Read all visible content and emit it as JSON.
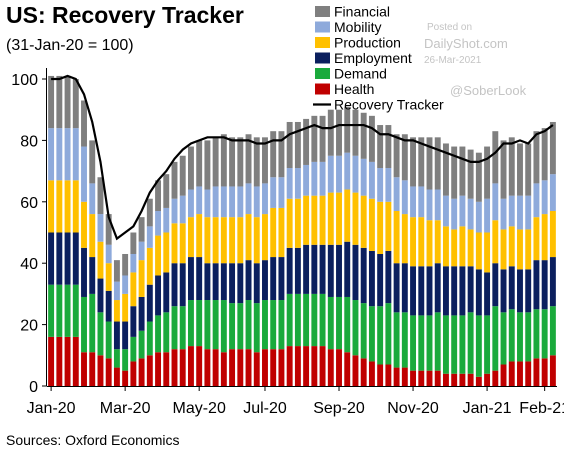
{
  "chart_data": {
    "type": "bar",
    "stacked": true,
    "title": "US: Recovery Tracker",
    "subtitle": "(31-Jan-20 = 100)",
    "source": "Sources: Oxford Economics",
    "ylim": [
      0,
      110
    ],
    "yticks": [
      0,
      20,
      40,
      60,
      80,
      100
    ],
    "xticks": [
      "Jan-20",
      "Mar-20",
      "May-20",
      "Jul-20",
      "Sep-20",
      "Nov-20",
      "Jan-21",
      "Feb-21"
    ],
    "xtick_positions": [
      0,
      9,
      18,
      26,
      35,
      44,
      53,
      60
    ],
    "legend_position": "top-right",
    "grid": false,
    "series": [
      {
        "name": "Health",
        "color": "#c00000",
        "values": [
          16,
          16,
          16,
          16,
          11,
          11,
          10,
          9,
          6,
          5,
          8,
          9,
          10,
          11,
          11,
          12,
          12,
          13,
          13,
          12,
          12,
          11,
          12,
          12,
          12,
          11,
          12,
          12,
          12,
          13,
          13,
          13,
          13,
          13,
          12,
          12,
          11,
          10,
          9,
          8,
          7,
          7,
          6,
          6,
          5,
          5,
          5,
          5,
          4,
          4,
          4,
          4,
          3,
          4,
          5,
          7,
          8,
          8,
          8,
          9,
          9,
          10
        ]
      },
      {
        "name": "Demand",
        "color": "#1aaa3c",
        "values": [
          17,
          17,
          17,
          17,
          18,
          19,
          14,
          12,
          6,
          7,
          8,
          9,
          11,
          12,
          13,
          14,
          14,
          15,
          15,
          16,
          16,
          17,
          15,
          15,
          16,
          16,
          16,
          16,
          16,
          17,
          17,
          17,
          17,
          17,
          17,
          17,
          18,
          18,
          18,
          18,
          19,
          20,
          18,
          18,
          18,
          18,
          18,
          19,
          19,
          19,
          19,
          20,
          20,
          19,
          21,
          17,
          17,
          16,
          16,
          16,
          16,
          16
        ]
      },
      {
        "name": "Employment",
        "color": "#0b1f5e",
        "values": [
          17,
          17,
          17,
          17,
          16,
          12,
          11,
          10,
          9,
          9,
          10,
          11,
          12,
          13,
          13,
          14,
          14,
          14,
          14,
          12,
          12,
          12,
          13,
          13,
          13,
          13,
          13,
          14,
          14,
          15,
          15,
          16,
          16,
          16,
          17,
          17,
          18,
          18,
          18,
          18,
          17,
          17,
          16,
          16,
          16,
          16,
          16,
          16,
          16,
          16,
          16,
          15,
          15,
          14,
          14,
          14,
          14,
          14,
          14,
          16,
          16,
          16
        ]
      },
      {
        "name": "Production",
        "color": "#ffc000",
        "values": [
          17,
          17,
          17,
          17,
          15,
          14,
          12,
          9,
          7,
          9,
          11,
          12,
          12,
          13,
          13,
          13,
          13,
          13,
          14,
          15,
          15,
          15,
          15,
          15,
          15,
          15,
          15,
          16,
          16,
          16,
          16,
          16,
          16,
          16,
          17,
          17,
          17,
          17,
          17,
          17,
          17,
          16,
          17,
          16,
          16,
          16,
          15,
          14,
          13,
          12,
          13,
          12,
          12,
          13,
          14,
          13,
          13,
          13,
          13,
          14,
          15,
          15
        ]
      },
      {
        "name": "Mobility",
        "color": "#8eaadb",
        "values": [
          17,
          17,
          17,
          17,
          18,
          10,
          9,
          6,
          6,
          6,
          6,
          6,
          7,
          8,
          8,
          8,
          9,
          9,
          9,
          9,
          10,
          10,
          10,
          10,
          10,
          10,
          10,
          10,
          10,
          10,
          10,
          10,
          11,
          11,
          12,
          12,
          12,
          12,
          12,
          12,
          11,
          11,
          11,
          11,
          10,
          10,
          10,
          10,
          10,
          10,
          10,
          10,
          10,
          11,
          12,
          10,
          10,
          11,
          11,
          11,
          11,
          12
        ]
      },
      {
        "name": "Financial",
        "color": "#7f7f7f",
        "values": [
          17,
          17,
          17,
          16,
          15,
          14,
          12,
          10,
          7,
          7,
          7,
          8,
          9,
          10,
          11,
          12,
          13,
          14,
          15,
          16,
          16,
          17,
          16,
          16,
          16,
          16,
          15,
          15,
          15,
          15,
          15,
          15,
          15,
          15,
          15,
          15,
          15,
          15,
          15,
          15,
          14,
          14,
          14,
          15,
          16,
          16,
          17,
          17,
          17,
          17,
          16,
          16,
          16,
          17,
          17,
          19,
          19,
          17,
          17,
          17,
          17,
          17
        ]
      }
    ],
    "line": {
      "name": "Recovery Tracker",
      "color": "#000000",
      "values": [
        100,
        100,
        101,
        100,
        95,
        86,
        73,
        55,
        48,
        50,
        52,
        57,
        63,
        67,
        70,
        74,
        77,
        79,
        80,
        81,
        81,
        81,
        80,
        80,
        80,
        79,
        79,
        80,
        80,
        82,
        83,
        84,
        85,
        84,
        84,
        85,
        85,
        85,
        85,
        84,
        82,
        82,
        81,
        80,
        80,
        79,
        78,
        77,
        76,
        75,
        74,
        73,
        73,
        74,
        76,
        79,
        79,
        80,
        79,
        82,
        83,
        85
      ]
    }
  },
  "watermark": {
    "posted": "Posted on",
    "site": "DailyShot.com",
    "date": "26-Mar-2021",
    "handle": "@SoberLook"
  }
}
